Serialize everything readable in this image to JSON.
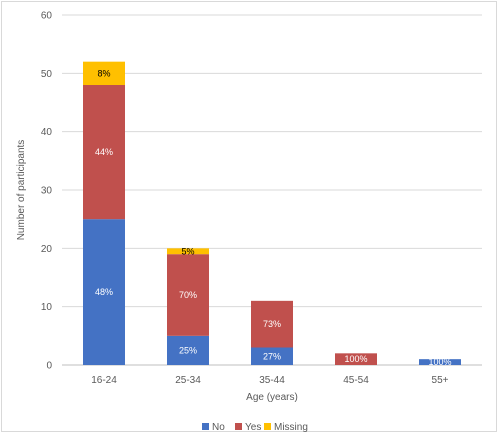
{
  "chart_data": {
    "type": "bar",
    "stacked": true,
    "categories": [
      "16-24",
      "25-34",
      "35-44",
      "45-54",
      "55+"
    ],
    "series": [
      {
        "name": "No",
        "color": "#4472C4",
        "values": [
          25,
          5,
          3,
          0,
          1
        ],
        "labels": [
          "48%",
          "25%",
          "27%",
          "",
          "100%"
        ],
        "label_color": "#ffffff"
      },
      {
        "name": "Yes",
        "color": "#C0504D",
        "values": [
          23,
          14,
          8,
          2,
          0
        ],
        "labels": [
          "44%",
          "70%",
          "73%",
          "100%",
          ""
        ],
        "label_color": "#ffffff"
      },
      {
        "name": "Missing",
        "color": "#FFC000",
        "values": [
          4,
          1,
          0,
          0,
          0
        ],
        "labels": [
          "8%",
          "5%",
          "",
          "",
          ""
        ],
        "label_color": "#000000"
      }
    ],
    "xlabel": "Age (years)",
    "ylabel": "Number of participants",
    "ylim": [
      0,
      60
    ],
    "yticks": [
      0,
      10,
      20,
      30,
      40,
      50,
      60
    ],
    "grid": true,
    "legend": "bottom"
  }
}
